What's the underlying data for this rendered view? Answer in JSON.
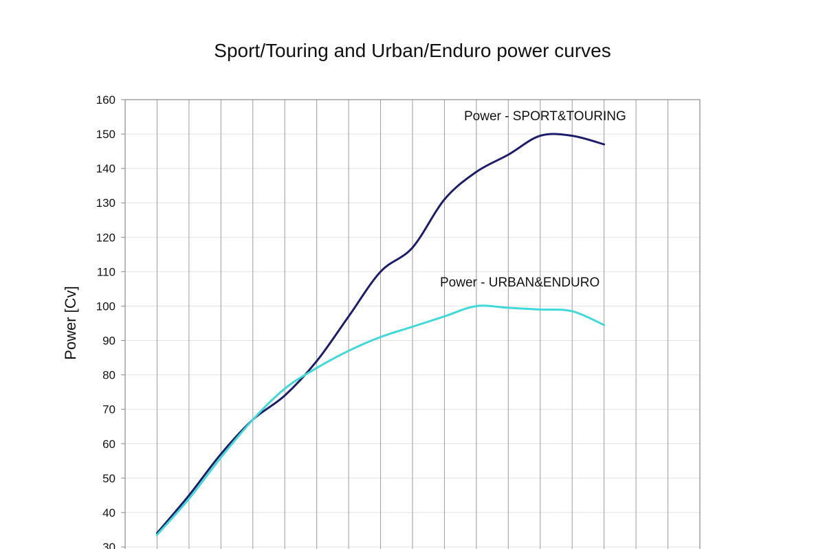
{
  "chart_data": {
    "type": "line",
    "title": "Sport/Touring and Urban/Enduro power curves",
    "ylabel": "Power [Cv]",
    "xlabel": "",
    "ylim": [
      30,
      160
    ],
    "yticks": [
      30,
      40,
      50,
      60,
      70,
      80,
      90,
      100,
      110,
      120,
      130,
      140,
      150,
      160
    ],
    "x_categories": 18,
    "grid": {
      "vertical": true,
      "horizontal": true
    },
    "colors": {
      "sport_touring": "#1c1c6b",
      "urban_enduro": "#3fd9d9",
      "grid_vertical": "#9a9a9a",
      "grid_horizontal": "#e2e2e2",
      "frame": "#888888"
    },
    "series": [
      {
        "key": "sport_touring",
        "label": "Power - SPORT&TOURING",
        "x": [
          1,
          2,
          3,
          4,
          5,
          6,
          7,
          8,
          9,
          10,
          11,
          12,
          13,
          14,
          15
        ],
        "values": [
          34,
          45,
          57,
          67,
          74,
          84,
          97,
          110,
          117,
          131,
          139,
          144,
          149.5,
          149.5,
          147
        ]
      },
      {
        "key": "urban_enduro",
        "label": "Power  - URBAN&ENDURO",
        "x": [
          1,
          2,
          3,
          4,
          5,
          6,
          7,
          8,
          9,
          10,
          11,
          12,
          13,
          14,
          15
        ],
        "values": [
          33.5,
          44,
          56,
          67,
          76,
          82,
          87,
          91,
          94,
          97,
          100,
          99.5,
          99,
          98.5,
          94.5
        ]
      }
    ]
  }
}
